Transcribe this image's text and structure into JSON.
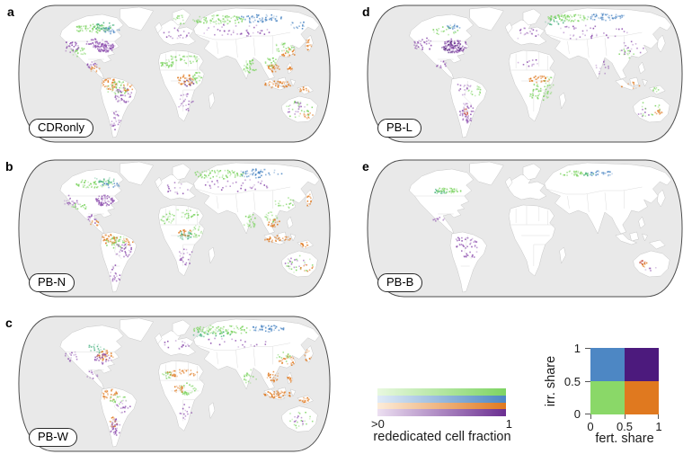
{
  "palette": {
    "green": "#7ed463",
    "teal": "#3fae7a",
    "blue": "#4d87c4",
    "orange": "#e0791f",
    "purple": "#8d4fae",
    "darkpurple": "#55207f",
    "red": "#c0392b"
  },
  "map_style": {
    "ocean": "#e9e9e9",
    "land": "#ffffff",
    "coast": "#c6c6c6",
    "border": "#d9d9d9",
    "outline": "#4d4d4d"
  },
  "panels": [
    {
      "letter": "a",
      "scenario": "CDRonly",
      "clusters": [
        [
          88,
          28,
          22,
          5,
          "green",
          70
        ],
        [
          99,
          25,
          14,
          4,
          "teal",
          30
        ],
        [
          108,
          30,
          10,
          4,
          "blue",
          22
        ],
        [
          101,
          48,
          12,
          6,
          "purple",
          90
        ],
        [
          91,
          44,
          11,
          5,
          "purple",
          30
        ],
        [
          63,
          48,
          9,
          7,
          "purple",
          28
        ],
        [
          72,
          54,
          9,
          5,
          "green",
          22
        ],
        [
          86,
          68,
          7,
          5,
          "purple",
          16
        ],
        [
          90,
          73,
          6,
          4,
          "orange",
          12
        ],
        [
          106,
          90,
          9,
          7,
          "orange",
          42
        ],
        [
          115,
          94,
          13,
          8,
          "green",
          38
        ],
        [
          122,
          102,
          10,
          9,
          "purple",
          38
        ],
        [
          113,
          130,
          6,
          11,
          "purple",
          24
        ],
        [
          127,
          93,
          6,
          5,
          "orange",
          16
        ],
        [
          172,
          68,
          8,
          5,
          "green",
          24
        ],
        [
          190,
          62,
          20,
          5,
          "green",
          42
        ],
        [
          193,
          85,
          10,
          6,
          "orange",
          38
        ],
        [
          196,
          88,
          7,
          4,
          "darkpurple",
          13
        ],
        [
          205,
          82,
          7,
          7,
          "green",
          24
        ],
        [
          193,
          110,
          9,
          10,
          "purple",
          22
        ],
        [
          182,
          34,
          15,
          7,
          "purple",
          20
        ],
        [
          187,
          18,
          8,
          5,
          "green",
          14
        ],
        [
          230,
          18,
          30,
          5,
          "green",
          85
        ],
        [
          278,
          17,
          26,
          5,
          "blue",
          60
        ],
        [
          250,
          30,
          42,
          7,
          "purple",
          45
        ],
        [
          320,
          24,
          10,
          5,
          "blue",
          15
        ],
        [
          266,
          70,
          8,
          8,
          "green",
          38
        ],
        [
          290,
          66,
          8,
          6,
          "green",
          22
        ],
        [
          293,
          72,
          7,
          5,
          "orange",
          26
        ],
        [
          305,
          50,
          12,
          7,
          "green",
          26
        ],
        [
          310,
          55,
          8,
          5,
          "orange",
          20
        ],
        [
          298,
          90,
          16,
          4,
          "orange",
          42
        ],
        [
          311,
          73,
          3,
          4,
          "orange",
          10
        ],
        [
          332,
          46,
          4,
          7,
          "orange",
          16
        ],
        [
          328,
          96,
          6,
          3,
          "orange",
          13
        ],
        [
          322,
          118,
          16,
          10,
          "green",
          26
        ],
        [
          318,
          116,
          12,
          8,
          "purple",
          16
        ],
        [
          331,
          123,
          8,
          5,
          "orange",
          12
        ]
      ]
    },
    {
      "letter": "b",
      "scenario": "PB-N",
      "clusters": [
        [
          88,
          28,
          22,
          5,
          "green",
          50
        ],
        [
          99,
          25,
          14,
          4,
          "teal",
          22
        ],
        [
          108,
          30,
          10,
          4,
          "blue",
          15
        ],
        [
          101,
          47,
          11,
          6,
          "purple",
          65
        ],
        [
          63,
          48,
          9,
          7,
          "purple",
          20
        ],
        [
          72,
          54,
          9,
          5,
          "green",
          16
        ],
        [
          86,
          68,
          7,
          5,
          "purple",
          12
        ],
        [
          90,
          73,
          6,
          4,
          "orange",
          9
        ],
        [
          106,
          90,
          9,
          7,
          "orange",
          38
        ],
        [
          115,
          94,
          13,
          8,
          "green",
          32
        ],
        [
          122,
          102,
          10,
          9,
          "purple",
          32
        ],
        [
          113,
          130,
          6,
          11,
          "purple",
          20
        ],
        [
          127,
          93,
          6,
          5,
          "orange",
          12
        ],
        [
          172,
          68,
          8,
          5,
          "green",
          20
        ],
        [
          190,
          62,
          20,
          5,
          "green",
          32
        ],
        [
          192,
          86,
          8,
          5,
          "teal",
          32
        ],
        [
          194,
          83,
          9,
          4,
          "orange",
          18
        ],
        [
          205,
          82,
          7,
          7,
          "green",
          20
        ],
        [
          193,
          110,
          9,
          10,
          "purple",
          20
        ],
        [
          182,
          34,
          15,
          7,
          "purple",
          16
        ],
        [
          230,
          18,
          30,
          5,
          "green",
          70
        ],
        [
          278,
          17,
          26,
          5,
          "blue",
          50
        ],
        [
          250,
          30,
          42,
          7,
          "purple",
          38
        ],
        [
          266,
          70,
          8,
          8,
          "green",
          30
        ],
        [
          290,
          66,
          8,
          6,
          "green",
          18
        ],
        [
          293,
          72,
          7,
          5,
          "orange",
          22
        ],
        [
          305,
          50,
          12,
          7,
          "green",
          18
        ],
        [
          298,
          90,
          16,
          4,
          "orange",
          36
        ],
        [
          332,
          46,
          4,
          7,
          "orange",
          14
        ],
        [
          328,
          96,
          6,
          3,
          "orange",
          11
        ],
        [
          322,
          118,
          16,
          10,
          "green",
          20
        ],
        [
          318,
          116,
          12,
          8,
          "purple",
          12
        ],
        [
          331,
          123,
          8,
          5,
          "orange",
          9
        ]
      ]
    },
    {
      "letter": "c",
      "scenario": "PB-W",
      "clusters": [
        [
          235,
          17,
          34,
          5,
          "green",
          100
        ],
        [
          285,
          16,
          20,
          4,
          "blue",
          50
        ],
        [
          222,
          22,
          24,
          4,
          "teal",
          28
        ],
        [
          92,
          38,
          12,
          5,
          "teal",
          22
        ],
        [
          101,
          46,
          10,
          6,
          "orange",
          38
        ],
        [
          99,
          50,
          10,
          6,
          "purple",
          28
        ],
        [
          63,
          47,
          8,
          6,
          "purple",
          16
        ],
        [
          86,
          68,
          7,
          5,
          "purple",
          11
        ],
        [
          106,
          90,
          9,
          7,
          "orange",
          38
        ],
        [
          116,
          96,
          10,
          6,
          "green",
          18
        ],
        [
          113,
          127,
          6,
          11,
          "purple",
          38
        ],
        [
          111,
          121,
          5,
          6,
          "orange",
          16
        ],
        [
          122,
          104,
          8,
          8,
          "purple",
          18
        ],
        [
          189,
          66,
          18,
          4,
          "orange",
          38
        ],
        [
          195,
          84,
          10,
          7,
          "green",
          32
        ],
        [
          185,
          84,
          6,
          4,
          "orange",
          20
        ],
        [
          172,
          68,
          7,
          4,
          "green",
          16
        ],
        [
          193,
          110,
          8,
          9,
          "purple",
          14
        ],
        [
          182,
          34,
          15,
          7,
          "purple",
          16
        ],
        [
          250,
          32,
          40,
          7,
          "purple",
          20
        ],
        [
          266,
          70,
          8,
          8,
          "green",
          20
        ],
        [
          292,
          70,
          8,
          6,
          "orange",
          24
        ],
        [
          308,
          52,
          10,
          7,
          "orange",
          26
        ],
        [
          304,
          48,
          10,
          6,
          "green",
          14
        ],
        [
          298,
          90,
          17,
          4,
          "orange",
          55
        ],
        [
          328,
          96,
          6,
          3,
          "orange",
          18
        ],
        [
          311,
          73,
          3,
          4,
          "orange",
          9
        ],
        [
          332,
          46,
          4,
          7,
          "orange",
          13
        ],
        [
          322,
          118,
          16,
          10,
          "green",
          18
        ],
        [
          318,
          120,
          10,
          6,
          "purple",
          9
        ]
      ]
    },
    {
      "letter": "d",
      "scenario": "PB-L",
      "clusters": [
        [
          228,
          16,
          26,
          4,
          "green",
          75
        ],
        [
          272,
          15,
          22,
          4,
          "blue",
          50
        ],
        [
          214,
          20,
          12,
          4,
          "teal",
          16
        ],
        [
          99,
          48,
          13,
          7,
          "darkpurple",
          70
        ],
        [
          101,
          47,
          15,
          8,
          "purple",
          60
        ],
        [
          66,
          45,
          11,
          8,
          "purple",
          32
        ],
        [
          90,
          30,
          15,
          5,
          "green",
          22
        ],
        [
          99,
          27,
          9,
          4,
          "blue",
          18
        ],
        [
          86,
          68,
          7,
          5,
          "purple",
          11
        ],
        [
          115,
          122,
          8,
          12,
          "purple",
          50
        ],
        [
          114,
          120,
          3,
          4,
          "red",
          9
        ],
        [
          124,
          97,
          8,
          6,
          "green",
          16
        ],
        [
          111,
          95,
          10,
          7,
          "purple",
          16
        ],
        [
          197,
          98,
          13,
          10,
          "green",
          50
        ],
        [
          196,
          84,
          14,
          4,
          "orange",
          34
        ],
        [
          207,
          87,
          6,
          7,
          "green",
          14
        ],
        [
          186,
          66,
          14,
          4,
          "purple",
          11
        ],
        [
          252,
          32,
          44,
          8,
          "purple",
          40
        ],
        [
          182,
          34,
          15,
          7,
          "purple",
          20
        ],
        [
          300,
          50,
          14,
          8,
          "purple",
          16
        ],
        [
          296,
          55,
          11,
          6,
          "green",
          12
        ],
        [
          267,
          71,
          8,
          8,
          "purple",
          12
        ],
        [
          331,
          120,
          5,
          4,
          "orange",
          14
        ],
        [
          320,
          117,
          13,
          9,
          "green",
          12
        ],
        [
          315,
          121,
          8,
          5,
          "purple",
          7
        ],
        [
          298,
          91,
          12,
          4,
          "orange",
          9
        ],
        [
          328,
          96,
          5,
          3,
          "green",
          7
        ]
      ]
    },
    {
      "letter": "e",
      "scenario": "PB-B",
      "clusters": [
        [
          93,
          36,
          17,
          3,
          "green",
          42
        ],
        [
          85,
          37,
          9,
          3,
          "teal",
          12
        ],
        [
          235,
          17,
          16,
          3,
          "green",
          36
        ],
        [
          266,
          17,
          16,
          3,
          "blue",
          25
        ],
        [
          251,
          18,
          7,
          2,
          "teal",
          9
        ],
        [
          116,
          100,
          13,
          12,
          "purple",
          38
        ],
        [
          106,
          92,
          5,
          8,
          "purple",
          11
        ],
        [
          84,
          68,
          7,
          5,
          "purple",
          9
        ],
        [
          313,
          116,
          4,
          4,
          "red",
          9
        ],
        [
          315,
          118,
          4,
          3,
          "orange",
          7
        ],
        [
          321,
          122,
          8,
          5,
          "purple",
          5
        ]
      ]
    }
  ],
  "legend_gradient": {
    "tick_left": ">0",
    "tick_right": "1",
    "label": "rededicated cell fraction",
    "strips": [
      {
        "light": "#e8f8df",
        "full": "#7ed463"
      },
      {
        "light": "#e0ebf7",
        "full": "#4d87c4"
      },
      {
        "light": "#fcecd9",
        "full": "#e0791f"
      },
      {
        "light": "#ecdff1",
        "full": "#6b2e91"
      }
    ]
  },
  "legend_matrix": {
    "y_label": "irr. share",
    "x_label": "fert. share",
    "y_ticks": [
      "1",
      "0.5",
      "0"
    ],
    "x_ticks": [
      "0",
      "0.5",
      "1"
    ],
    "cells": {
      "top_left": "#4d87c4",
      "top_right": "#4c1a7d",
      "bottom_left": "#8ad868",
      "bottom_right": "#e0791f"
    }
  }
}
